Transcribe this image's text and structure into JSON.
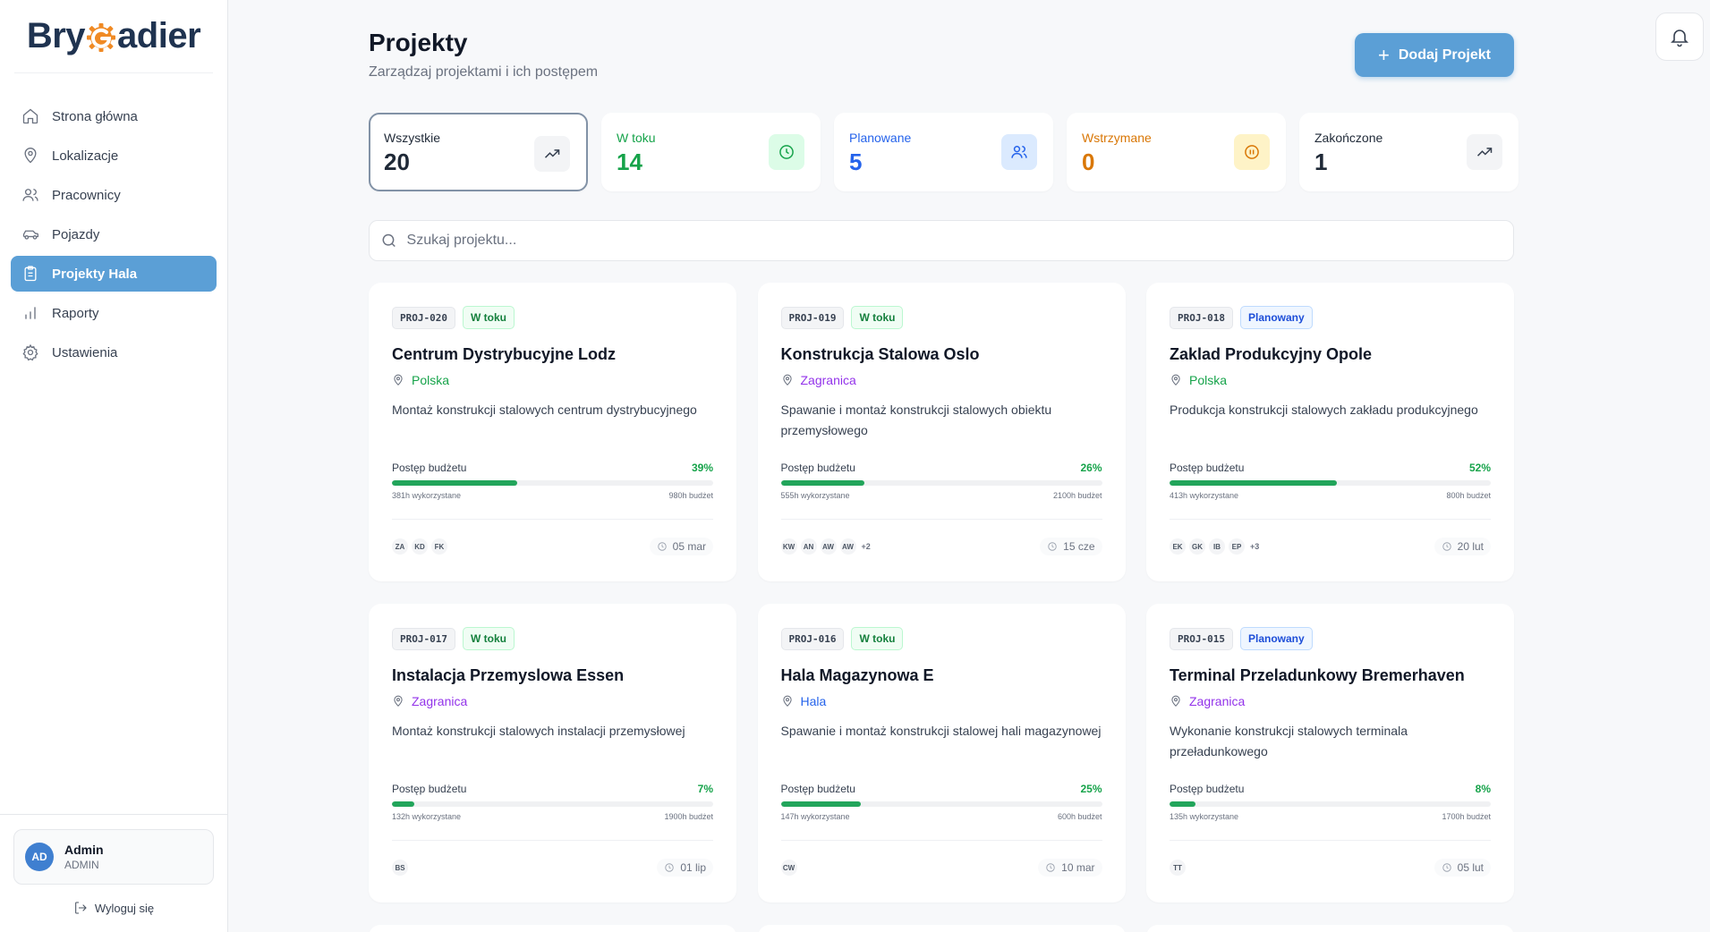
{
  "brand": {
    "part1": "Bry",
    "part2": "adier",
    "accent": "#f08a24"
  },
  "sidebar": {
    "items": [
      {
        "label": "Strona główna",
        "icon": "home-icon",
        "active": false
      },
      {
        "label": "Lokalizacje",
        "icon": "map-pin-icon",
        "active": false
      },
      {
        "label": "Pracownicy",
        "icon": "users-icon",
        "active": false
      },
      {
        "label": "Pojazdy",
        "icon": "car-icon",
        "active": false
      },
      {
        "label": "Projekty Hala",
        "icon": "clipboard-icon",
        "active": true
      },
      {
        "label": "Raporty",
        "icon": "bar-chart-icon",
        "active": false
      },
      {
        "label": "Ustawienia",
        "icon": "gear-icon",
        "active": false
      }
    ],
    "user": {
      "initials": "AD",
      "name": "Admin",
      "role": "ADMIN"
    },
    "logout_label": "Wyloguj się"
  },
  "header": {
    "title": "Projekty",
    "subtitle": "Zarządzaj projektami i ich postępem",
    "add_button": "Dodaj Projekt"
  },
  "stats": [
    {
      "label": "Wszystkie",
      "value": "20",
      "color": "#1f2937",
      "icon": "trend-up-icon",
      "iconBg": "#f3f4f6",
      "iconColor": "#374151",
      "selected": true
    },
    {
      "label": "W toku",
      "value": "14",
      "color": "#16a34a",
      "icon": "clock-icon",
      "iconBg": "#dcfce7",
      "iconColor": "#16a34a",
      "selected": false
    },
    {
      "label": "Planowane",
      "value": "5",
      "color": "#2563eb",
      "icon": "users-icon",
      "iconBg": "#dbeafe",
      "iconColor": "#2563eb",
      "selected": false
    },
    {
      "label": "Wstrzymane",
      "value": "0",
      "color": "#d97706",
      "icon": "pause-icon",
      "iconBg": "#fef3c7",
      "iconColor": "#d97706",
      "selected": false
    },
    {
      "label": "Zakończone",
      "value": "1",
      "color": "#1f2937",
      "icon": "trend-up-icon",
      "iconBg": "#f3f4f6",
      "iconColor": "#374151",
      "selected": false
    }
  ],
  "search": {
    "placeholder": "Szukaj projektu..."
  },
  "budget_label": "Postęp budżetu",
  "projects": [
    {
      "id": "PROJ-020",
      "status": "W toku",
      "statusType": "active",
      "title": "Centrum Dystrybucyjne Lodz",
      "location": "Polska",
      "locColor": "#16a34a",
      "description": "Montaż konstrukcji stalowych centrum dystrybucyjnego",
      "pct": "39%",
      "progress": 0.39,
      "used": "381h wykorzystane",
      "budget": "980h budżet",
      "workers": [
        "ZA",
        "KD",
        "FK"
      ],
      "more": "",
      "date": "05 mar"
    },
    {
      "id": "PROJ-019",
      "status": "W toku",
      "statusType": "active",
      "title": "Konstrukcja Stalowa Oslo",
      "location": "Zagranica",
      "locColor": "#9333ea",
      "description": "Spawanie i montaż konstrukcji stalowych obiektu przemysłowego",
      "pct": "26%",
      "progress": 0.26,
      "used": "555h wykorzystane",
      "budget": "2100h budżet",
      "workers": [
        "KW",
        "AN",
        "AW",
        "AW"
      ],
      "more": "+2",
      "date": "15 cze"
    },
    {
      "id": "PROJ-018",
      "status": "Planowany",
      "statusType": "planned",
      "title": "Zaklad Produkcyjny Opole",
      "location": "Polska",
      "locColor": "#16a34a",
      "description": "Produkcja konstrukcji stalowych zakładu produkcyjnego",
      "pct": "52%",
      "progress": 0.52,
      "used": "413h wykorzystane",
      "budget": "800h budżet",
      "workers": [
        "EK",
        "GK",
        "IB",
        "EP"
      ],
      "more": "+3",
      "date": "20 lut"
    },
    {
      "id": "PROJ-017",
      "status": "W toku",
      "statusType": "active",
      "title": "Instalacja Przemyslowa Essen",
      "location": "Zagranica",
      "locColor": "#9333ea",
      "description": "Montaż konstrukcji stalowych instalacji przemysłowej",
      "pct": "7%",
      "progress": 0.07,
      "used": "132h wykorzystane",
      "budget": "1900h budżet",
      "workers": [
        "BS"
      ],
      "more": "",
      "date": "01 lip"
    },
    {
      "id": "PROJ-016",
      "status": "W toku",
      "statusType": "active",
      "title": "Hala Magazynowa E",
      "location": "Hala",
      "locColor": "#2563eb",
      "description": "Spawanie i montaż konstrukcji stalowej hali magazynowej",
      "pct": "25%",
      "progress": 0.25,
      "used": "147h wykorzystane",
      "budget": "600h budżet",
      "workers": [
        "CW"
      ],
      "more": "",
      "date": "10 mar"
    },
    {
      "id": "PROJ-015",
      "status": "Planowany",
      "statusType": "planned",
      "title": "Terminal Przeladunkowy Bremerhaven",
      "location": "Zagranica",
      "locColor": "#9333ea",
      "description": "Wykonanie konstrukcji stalowych terminala przeładunkowego",
      "pct": "8%",
      "progress": 0.08,
      "used": "135h wykorzystane",
      "budget": "1700h budżet",
      "workers": [
        "TT"
      ],
      "more": "",
      "date": "05 lut"
    }
  ]
}
